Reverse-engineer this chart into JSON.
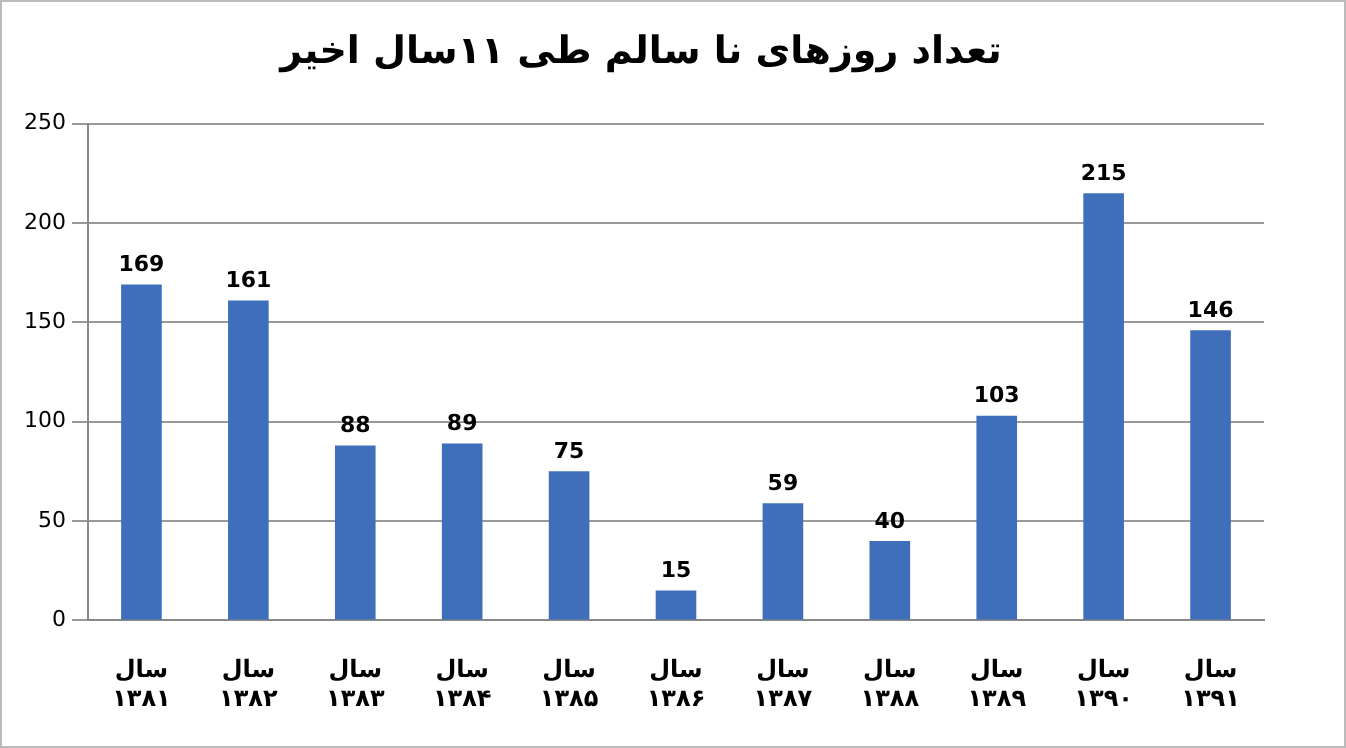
{
  "chart_data": {
    "type": "bar",
    "title": "تعداد روزهای نا سالم طی ۱۱سال اخیر",
    "categories": [
      "سال ۱۳۸۱",
      "سال ۱۳۸۲",
      "سال ۱۳۸۳",
      "سال ۱۳۸۴",
      "سال ۱۳۸۵",
      "سال ۱۳۸۶",
      "سال ۱۳۸۷",
      "سال ۱۳۸۸",
      "سال ۱۳۸۹",
      "سال ۱۳۹۰",
      "سال ۱۳۹۱"
    ],
    "values": [
      169,
      161,
      88,
      89,
      75,
      15,
      59,
      40,
      103,
      215,
      146
    ],
    "color": "#3f6fba",
    "ylim": [
      0,
      250
    ],
    "yticks": [
      0,
      50,
      100,
      150,
      200,
      250
    ],
    "grid": "y",
    "data_labels": true,
    "legend": false
  }
}
